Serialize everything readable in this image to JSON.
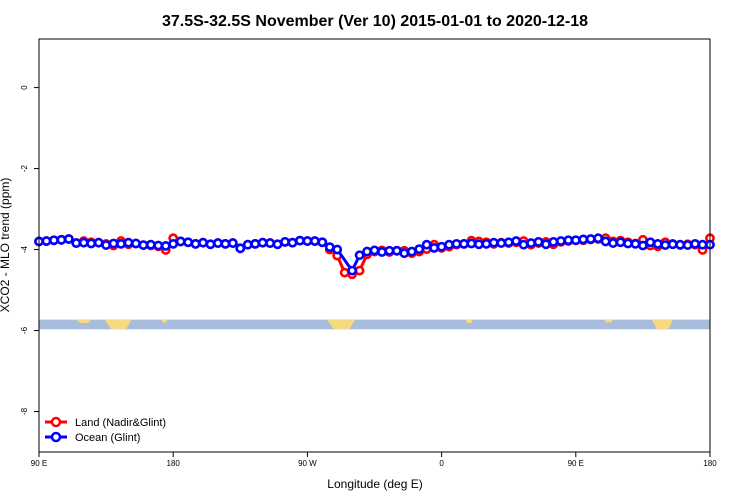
{
  "chart_data": {
    "type": "line",
    "title": "37.5S-32.5S November (Ver 10)   2015-01-01 to 2020-12-18",
    "xlabel": "Longitude (deg E)",
    "ylabel": "XCO2 - MLO trend (ppm)",
    "xlim": [
      90,
      540
    ],
    "ylim": [
      -9,
      1.2
    ],
    "xticks": [
      {
        "value": 90,
        "label": "90 E"
      },
      {
        "value": 180,
        "label": "180"
      },
      {
        "value": 270,
        "label": "90 W"
      },
      {
        "value": 360,
        "label": "0"
      },
      {
        "value": 450,
        "label": "90 E"
      },
      {
        "value": 540,
        "label": "180"
      }
    ],
    "yticks": [
      {
        "value": 0,
        "label": "0"
      },
      {
        "value": -2,
        "label": "-2"
      },
      {
        "value": -4,
        "label": "-4"
      },
      {
        "value": -6,
        "label": "-6"
      },
      {
        "value": -8,
        "label": "-8"
      }
    ],
    "legend_position": "bottom-left",
    "map_strip": {
      "y_range": [
        -5.97,
        -5.73
      ],
      "ocean_color": "#a7bddb",
      "land_color": "#f7d982"
    },
    "series": [
      {
        "name": "Land (Nadir&Glint)",
        "color": "#ff0000",
        "x": [
          90,
          95,
          100,
          105,
          110,
          115,
          120,
          125,
          130,
          135,
          140,
          145,
          150,
          155,
          160,
          165,
          170,
          175,
          180,
          185,
          190,
          195,
          200,
          205,
          210,
          215,
          220,
          225,
          230,
          235,
          240,
          245,
          250,
          255,
          260,
          265,
          270,
          275,
          280,
          285,
          290,
          295,
          300,
          305,
          310,
          315,
          320,
          325,
          330,
          335,
          340,
          345,
          350,
          355,
          360,
          365,
          370,
          375,
          380,
          385,
          390,
          395,
          400,
          405,
          410,
          415,
          420,
          425,
          430,
          435,
          440,
          445,
          450,
          455,
          460,
          465,
          470,
          475,
          480,
          485,
          490,
          495,
          500,
          505,
          510,
          515,
          520,
          525,
          530,
          535,
          540
        ],
        "values": [
          -3.8,
          -3.79,
          -3.77,
          -3.76,
          -3.74,
          -3.84,
          -3.79,
          -3.82,
          -3.83,
          -3.86,
          -3.9,
          -3.79,
          -3.87,
          -3.85,
          -3.89,
          -3.9,
          -3.92,
          -4.01,
          -3.72,
          -3.8,
          -3.82,
          -3.86,
          -3.83,
          -3.87,
          -3.84,
          -3.86,
          -3.84,
          -3.97,
          -3.88,
          -3.86,
          -3.83,
          -3.84,
          -3.87,
          -3.81,
          -3.83,
          -3.78,
          -3.79,
          -3.79,
          -3.82,
          -4.0,
          -4.15,
          -4.57,
          -4.61,
          -4.52,
          -4.12,
          -4.05,
          -4.02,
          -4.06,
          -4.03,
          -4.03,
          -4.09,
          -4.05,
          -3.99,
          -3.88,
          -3.96,
          -3.93,
          -3.88,
          -3.86,
          -3.78,
          -3.8,
          -3.82,
          -3.86,
          -3.83,
          -3.84,
          -3.82,
          -3.79,
          -3.88,
          -3.84,
          -3.81,
          -3.87,
          -3.81,
          -3.79,
          -3.77,
          -3.77,
          -3.75,
          -3.74,
          -3.72,
          -3.8,
          -3.78,
          -3.82,
          -3.85,
          -3.76,
          -3.9,
          -3.92,
          -3.82,
          -3.86,
          -3.89,
          -3.87,
          -3.88,
          -4.01,
          -3.72
        ]
      },
      {
        "name": "Ocean (Glint)",
        "color": "#0000ff",
        "x": [
          90,
          95,
          100,
          105,
          110,
          115,
          120,
          125,
          130,
          135,
          140,
          145,
          150,
          155,
          160,
          165,
          170,
          175,
          180,
          185,
          190,
          195,
          200,
          205,
          210,
          215,
          220,
          225,
          230,
          235,
          240,
          245,
          250,
          255,
          260,
          265,
          270,
          275,
          280,
          285,
          290,
          300,
          305,
          310,
          315,
          320,
          325,
          330,
          335,
          340,
          345,
          350,
          355,
          360,
          365,
          370,
          375,
          380,
          385,
          390,
          395,
          400,
          405,
          410,
          415,
          420,
          425,
          430,
          435,
          440,
          445,
          450,
          455,
          460,
          465,
          470,
          475,
          480,
          485,
          490,
          495,
          500,
          505,
          510,
          515,
          520,
          525,
          530,
          535,
          540
        ],
        "values": [
          -3.8,
          -3.79,
          -3.77,
          -3.76,
          -3.74,
          -3.84,
          -3.83,
          -3.85,
          -3.83,
          -3.89,
          -3.85,
          -3.86,
          -3.83,
          -3.85,
          -3.89,
          -3.88,
          -3.9,
          -3.91,
          -3.86,
          -3.8,
          -3.82,
          -3.86,
          -3.83,
          -3.87,
          -3.84,
          -3.86,
          -3.84,
          -3.97,
          -3.88,
          -3.86,
          -3.83,
          -3.84,
          -3.87,
          -3.81,
          -3.83,
          -3.78,
          -3.79,
          -3.79,
          -3.82,
          -3.94,
          -4.0,
          -4.52,
          -4.14,
          -4.05,
          -4.02,
          -4.06,
          -4.03,
          -4.03,
          -4.09,
          -4.05,
          -3.99,
          -3.88,
          -3.96,
          -3.93,
          -3.88,
          -3.86,
          -3.86,
          -3.85,
          -3.87,
          -3.86,
          -3.83,
          -3.84,
          -3.82,
          -3.79,
          -3.88,
          -3.84,
          -3.81,
          -3.87,
          -3.81,
          -3.79,
          -3.77,
          -3.77,
          -3.75,
          -3.74,
          -3.72,
          -3.8,
          -3.84,
          -3.82,
          -3.85,
          -3.86,
          -3.9,
          -3.82,
          -3.86,
          -3.89,
          -3.87,
          -3.88,
          -3.89,
          -3.86,
          -3.88,
          -3.88
        ]
      }
    ]
  }
}
